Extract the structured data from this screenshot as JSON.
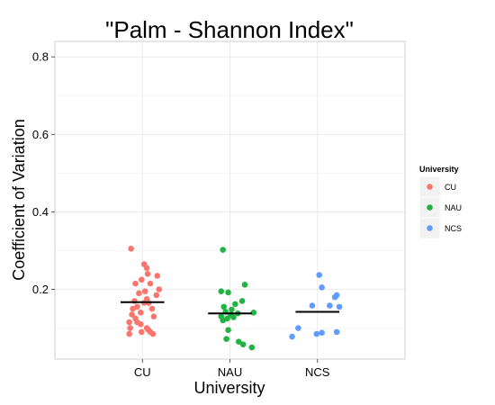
{
  "chart_data": {
    "type": "scatter",
    "title": "\"Palm - Shannon Index\"",
    "xlabel": "University",
    "ylabel": "Coefficient of Variation",
    "categories": [
      "CU",
      "NAU",
      "NCS"
    ],
    "ylim": [
      0.02,
      0.84
    ],
    "yticks": [
      "0.2",
      "0.4",
      "0.6",
      "0.8"
    ],
    "ytick_values": [
      0.2,
      0.4,
      0.6,
      0.8
    ],
    "grid": true,
    "legend": {
      "title": "University",
      "position": "right"
    },
    "colors": {
      "CU": "#F8766D",
      "NAU": "#21B343",
      "NCS": "#619CFF"
    },
    "series": [
      {
        "name": "CU",
        "category": "CU",
        "mean": 0.167,
        "points": [
          {
            "x": -0.13,
            "y": 0.305
          },
          {
            "x": 0.02,
            "y": 0.265
          },
          {
            "x": 0.05,
            "y": 0.255
          },
          {
            "x": 0.06,
            "y": 0.24
          },
          {
            "x": 0.17,
            "y": 0.235
          },
          {
            "x": -0.01,
            "y": 0.225
          },
          {
            "x": 0.09,
            "y": 0.215
          },
          {
            "x": -0.08,
            "y": 0.215
          },
          {
            "x": 0.19,
            "y": 0.2
          },
          {
            "x": 0.03,
            "y": 0.195
          },
          {
            "x": -0.04,
            "y": 0.19
          },
          {
            "x": 0.16,
            "y": 0.185
          },
          {
            "x": 0.05,
            "y": 0.175
          },
          {
            "x": -0.09,
            "y": 0.17
          },
          {
            "x": 0.02,
            "y": 0.165
          },
          {
            "x": 0.07,
            "y": 0.165
          },
          {
            "x": -0.06,
            "y": 0.155
          },
          {
            "x": 0.11,
            "y": 0.15
          },
          {
            "x": -0.11,
            "y": 0.15
          },
          {
            "x": -0.02,
            "y": 0.14
          },
          {
            "x": -0.12,
            "y": 0.135
          },
          {
            "x": 0.13,
            "y": 0.13
          },
          {
            "x": -0.08,
            "y": 0.125
          },
          {
            "x": -0.15,
            "y": 0.115
          },
          {
            "x": -0.06,
            "y": 0.115
          },
          {
            "x": -0.02,
            "y": 0.11
          },
          {
            "x": -0.14,
            "y": 0.1
          },
          {
            "x": 0.05,
            "y": 0.1
          },
          {
            "x": 0.07,
            "y": 0.095
          },
          {
            "x": 0.09,
            "y": 0.09
          },
          {
            "x": -0.01,
            "y": 0.09
          },
          {
            "x": -0.15,
            "y": 0.085
          },
          {
            "x": 0.12,
            "y": 0.085
          }
        ]
      },
      {
        "name": "NAU",
        "category": "NAU",
        "mean": 0.138,
        "points": [
          {
            "x": -0.08,
            "y": 0.302
          },
          {
            "x": 0.17,
            "y": 0.212
          },
          {
            "x": -0.1,
            "y": 0.195
          },
          {
            "x": -0.02,
            "y": 0.192
          },
          {
            "x": 0.14,
            "y": 0.17
          },
          {
            "x": 0.06,
            "y": 0.162
          },
          {
            "x": -0.07,
            "y": 0.155
          },
          {
            "x": 0.02,
            "y": 0.148
          },
          {
            "x": -0.05,
            "y": 0.142
          },
          {
            "x": 0.27,
            "y": 0.14
          },
          {
            "x": 0.09,
            "y": 0.138
          },
          {
            "x": 0.01,
            "y": 0.135
          },
          {
            "x": -0.1,
            "y": 0.13
          },
          {
            "x": 0.04,
            "y": 0.128
          },
          {
            "x": -0.03,
            "y": 0.125
          },
          {
            "x": -0.08,
            "y": 0.12
          },
          {
            "x": -0.02,
            "y": 0.095
          },
          {
            "x": -0.04,
            "y": 0.072
          },
          {
            "x": 0.1,
            "y": 0.065
          },
          {
            "x": 0.15,
            "y": 0.058
          },
          {
            "x": 0.25,
            "y": 0.05
          }
        ]
      },
      {
        "name": "NCS",
        "category": "NCS",
        "mean": 0.142,
        "points": [
          {
            "x": 0.02,
            "y": 0.237
          },
          {
            "x": 0.05,
            "y": 0.205
          },
          {
            "x": 0.22,
            "y": 0.185
          },
          {
            "x": 0.2,
            "y": 0.18
          },
          {
            "x": -0.06,
            "y": 0.158
          },
          {
            "x": 0.14,
            "y": 0.158
          },
          {
            "x": 0.25,
            "y": 0.155
          },
          {
            "x": -0.22,
            "y": 0.1
          },
          {
            "x": 0.22,
            "y": 0.09
          },
          {
            "x": 0.05,
            "y": 0.088
          },
          {
            "x": -0.01,
            "y": 0.085
          },
          {
            "x": -0.29,
            "y": 0.078
          }
        ]
      }
    ]
  }
}
